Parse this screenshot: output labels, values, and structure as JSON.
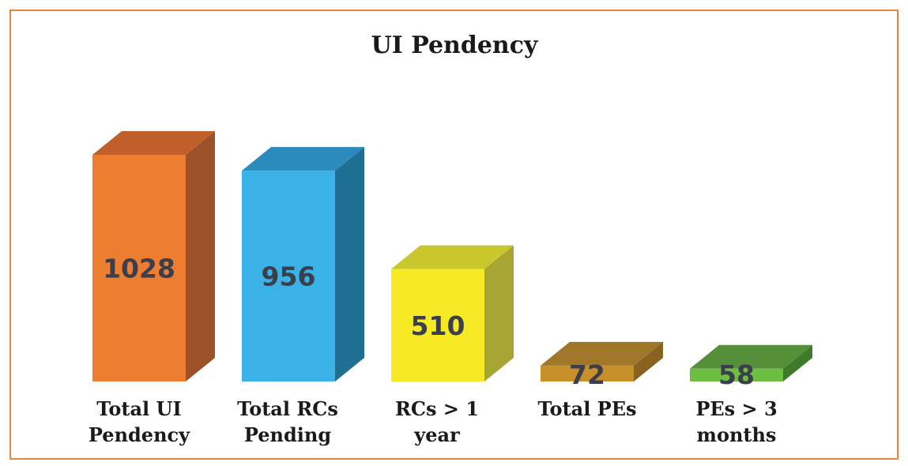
{
  "chart_data": {
    "type": "bar",
    "title": "UI Pendency",
    "xlabel": "",
    "ylabel": "",
    "categories": [
      [
        "Total UI",
        "Pendency"
      ],
      [
        "Total RCs",
        "Pending"
      ],
      [
        "RCs > 1",
        "year"
      ],
      [
        "Total PEs"
      ],
      [
        "PEs > 3",
        "months"
      ]
    ],
    "values": [
      1028,
      956,
      510,
      72,
      58
    ],
    "value_labels": [
      "1028",
      "956",
      "510",
      "72",
      "58"
    ],
    "colors": [
      {
        "front": "#ed7d31",
        "side": "#9c5228",
        "top": "#c0612b"
      },
      {
        "front": "#3bb2e6",
        "side": "#1f6f93",
        "top": "#2b8bbd"
      },
      {
        "front": "#f5ea24",
        "side": "#a7a534",
        "top": "#c8c82c"
      },
      {
        "front": "#c8902a",
        "side": "#8a6220",
        "top": "#a07628"
      },
      {
        "front": "#6cbf40",
        "side": "#3f7a2b",
        "top": "#558f37"
      }
    ],
    "ylim": [
      0,
      1028
    ],
    "grid": false,
    "legend": "none",
    "border_color": "#e5883e"
  }
}
